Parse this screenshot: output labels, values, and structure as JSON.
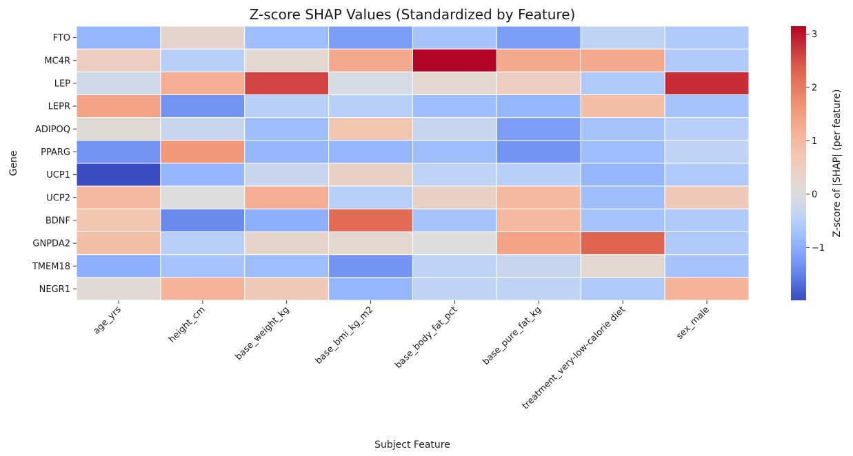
{
  "chart_data": {
    "type": "heatmap",
    "title": "Z-score SHAP Values (Standardized by Feature)",
    "xlabel": "Subject Feature",
    "ylabel": "Gene",
    "colorbar_label": "Z-score of |SHAP| (per feature)",
    "colormap": "coolwarm",
    "vmin": -1.99,
    "vmax": 3.15,
    "colorbar_ticks": [
      -1,
      0,
      1,
      2,
      3
    ],
    "columns": [
      "age_yrs",
      "height_cm",
      "base_weight_kg",
      "base_bmi_kg_m2",
      "base_body_fat_pct",
      "base_pure_fat_kg",
      "treatment_very-low-calorie diet",
      "sex_male"
    ],
    "rows": [
      "FTO",
      "MC4R",
      "LEP",
      "LEPR",
      "ADIPOQ",
      "PPARG",
      "UCP1",
      "UCP2",
      "BDNF",
      "GNPDA2",
      "TMEM18",
      "NEGR1"
    ],
    "values": [
      [
        -0.9,
        0.3,
        -0.8,
        -1.2,
        -0.7,
        -1.2,
        -0.4,
        -0.6
      ],
      [
        0.5,
        -0.5,
        0.2,
        1.3,
        3.15,
        1.3,
        1.3,
        -0.6
      ],
      [
        -0.2,
        1.2,
        2.6,
        -0.1,
        0.2,
        0.5,
        -0.6,
        2.8
      ],
      [
        1.4,
        -1.3,
        -0.5,
        -0.5,
        -0.8,
        -0.9,
        0.9,
        -0.7
      ],
      [
        0.1,
        -0.3,
        -0.8,
        0.7,
        -0.3,
        -1.2,
        -0.7,
        -0.5
      ],
      [
        -1.3,
        1.6,
        -0.9,
        -0.9,
        -0.8,
        -1.3,
        -0.8,
        -0.4
      ],
      [
        -1.99,
        -0.9,
        -0.3,
        0.4,
        -0.4,
        -0.5,
        -0.9,
        -0.6
      ],
      [
        1.0,
        0.0,
        1.2,
        -0.5,
        0.4,
        1.0,
        -0.8,
        0.6
      ],
      [
        0.7,
        -1.4,
        -1.0,
        2.2,
        -0.7,
        1.0,
        -0.7,
        -0.6
      ],
      [
        0.9,
        -0.5,
        0.3,
        0.2,
        0.0,
        1.4,
        2.3,
        -0.6
      ],
      [
        -1.0,
        -0.7,
        -0.8,
        -1.3,
        -0.4,
        -0.3,
        0.2,
        -0.7
      ],
      [
        0.1,
        1.1,
        0.6,
        -0.9,
        -0.4,
        -0.4,
        -0.6,
        1.1
      ]
    ]
  }
}
